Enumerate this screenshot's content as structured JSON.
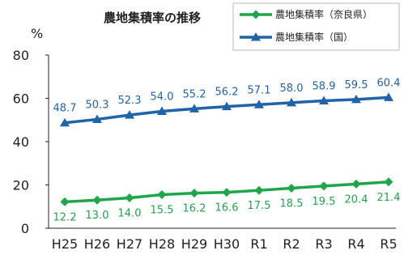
{
  "chart_data": {
    "type": "line",
    "title": "農地集積率の推移",
    "ylabel": "%",
    "categories": [
      "H25",
      "H26",
      "H27",
      "H28",
      "H29",
      "H30",
      "R1",
      "R2",
      "R3",
      "R4",
      "R5"
    ],
    "ylim": [
      0,
      80
    ],
    "yticks": [
      0,
      20,
      40,
      60,
      80
    ],
    "grid": false,
    "legend": "top-right",
    "series": [
      {
        "name": "農地集積率（奈良県）",
        "color": "#1fa64a",
        "marker": "diamond",
        "label_position": "below",
        "values": [
          12.2,
          13.0,
          14.0,
          15.5,
          16.2,
          16.6,
          17.5,
          18.5,
          19.5,
          20.4,
          21.4
        ]
      },
      {
        "name": "農地集積率（国）",
        "color": "#1f64aa",
        "marker": "triangle",
        "label_position": "above",
        "values": [
          48.7,
          50.3,
          52.3,
          54.0,
          55.2,
          56.2,
          57.1,
          58.0,
          58.9,
          59.5,
          60.4
        ]
      }
    ]
  }
}
